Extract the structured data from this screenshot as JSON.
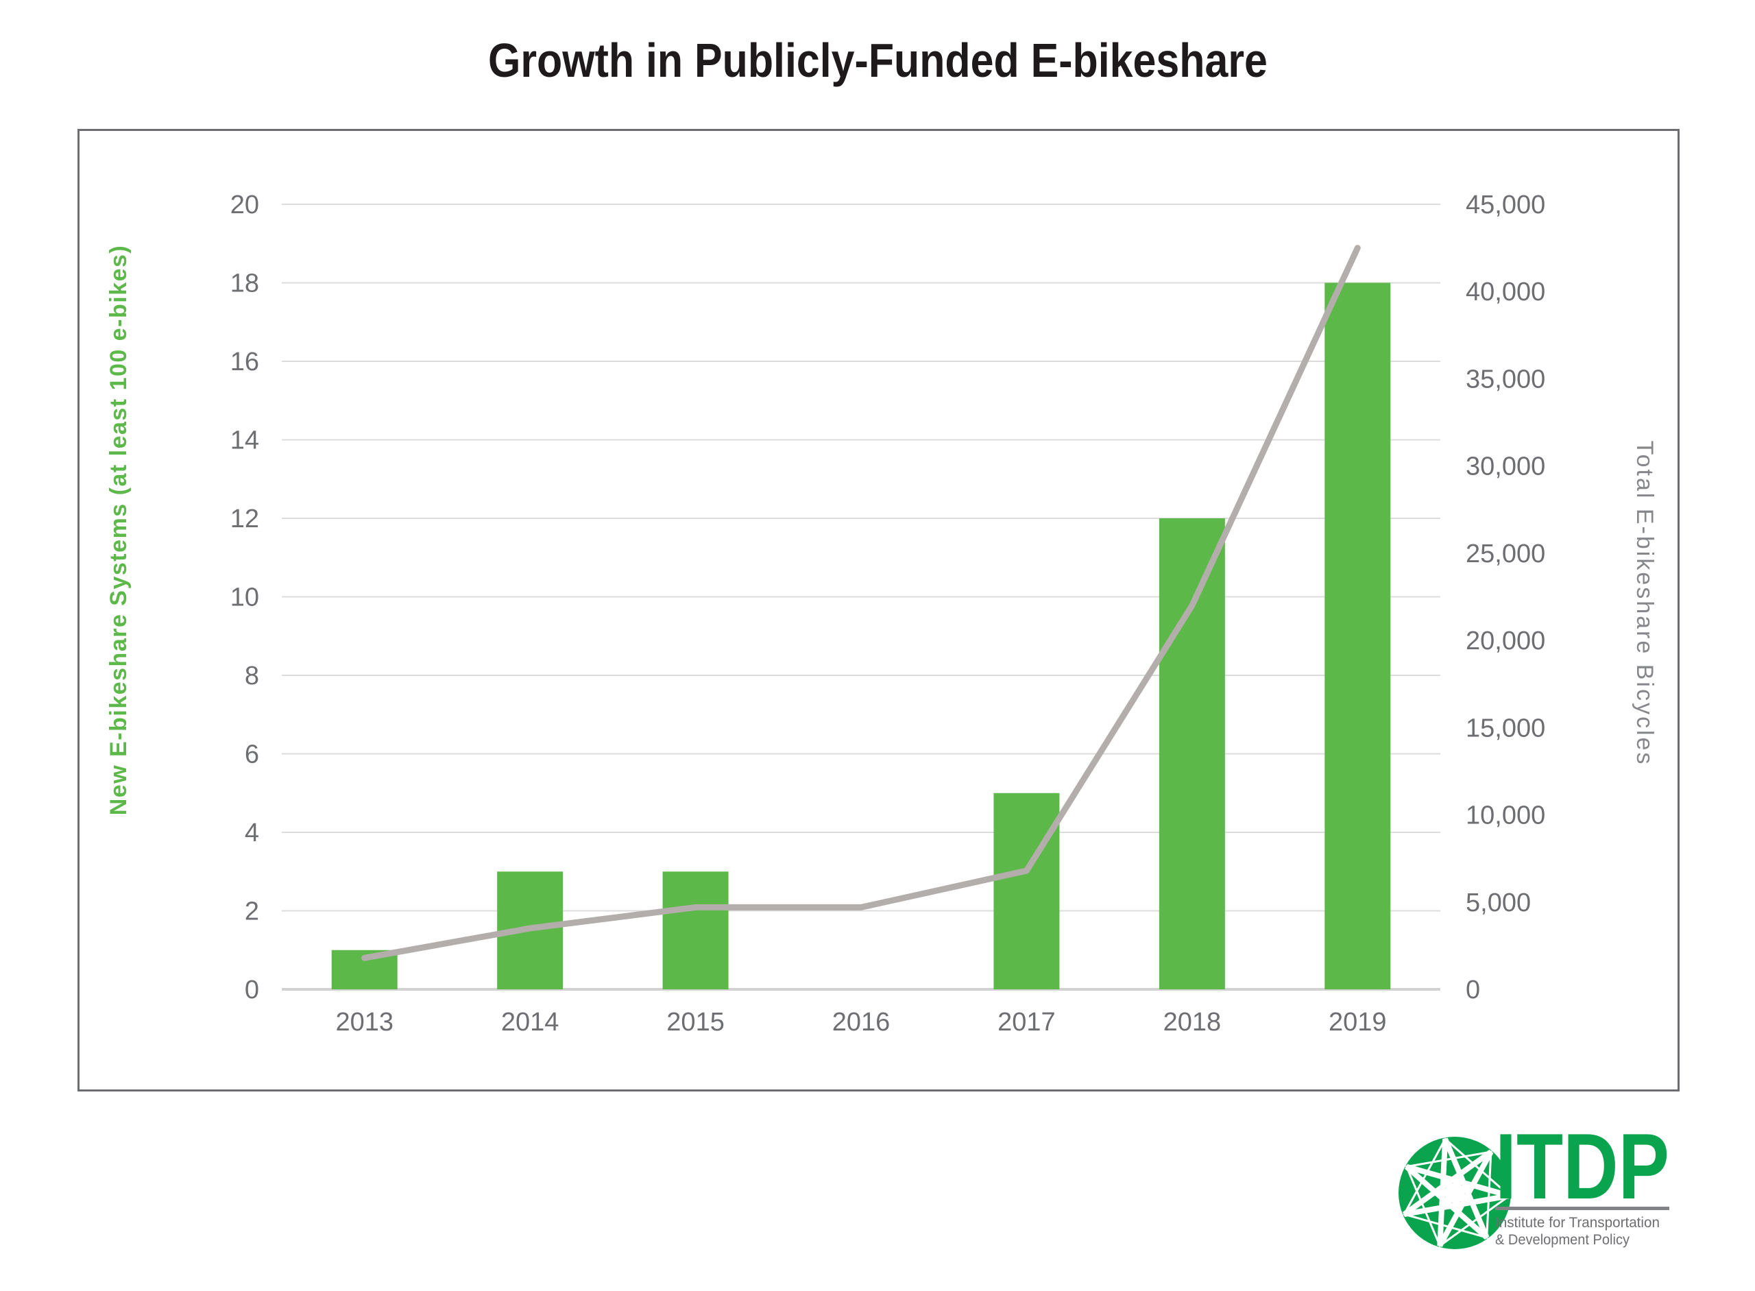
{
  "page": {
    "title": "Growth in Publicly-Funded E-bikeshare"
  },
  "chart_data": {
    "type": "combo-bar-line",
    "title": "Growth in Publicly-Funded E-bikeshare",
    "categories": [
      "2013",
      "2014",
      "2015",
      "2016",
      "2017",
      "2018",
      "2019"
    ],
    "series": [
      {
        "name": "New E-bikeshare Systems (at least 100 e-bikes)",
        "type": "bar",
        "axis": "left",
        "values": [
          1,
          3,
          3,
          0,
          5,
          12,
          18
        ],
        "color": "#5cb848"
      },
      {
        "name": "Total E-bikeshare Bicycles",
        "type": "line",
        "axis": "right",
        "values": [
          1800,
          3500,
          4700,
          4700,
          6800,
          22000,
          42500
        ],
        "color": "#b3aeab"
      }
    ],
    "left_axis": {
      "title": "New E-bikeshare Systems (at least 100 e-bikes)",
      "min": 0,
      "max": 20,
      "step": 2,
      "title_color": "#5cb848"
    },
    "right_axis": {
      "title": "Total E-bikeshare Bicycles",
      "min": 0,
      "max": 45000,
      "step": 5000,
      "title_color": "#85878a"
    },
    "grid": true,
    "legend": "none",
    "tick_color": "#6d6e71",
    "gridline_color": "#dcdcdc",
    "baseline_color": "#d2d2d2"
  },
  "logo": {
    "acronym": "ITDP",
    "line1": "Institute for Transportation",
    "line2": "& Development Policy",
    "green": "#0ba44e",
    "divider_color": "#808285",
    "text_color": "#6d6e71",
    "icon": "itdp-globe-star-icon"
  }
}
